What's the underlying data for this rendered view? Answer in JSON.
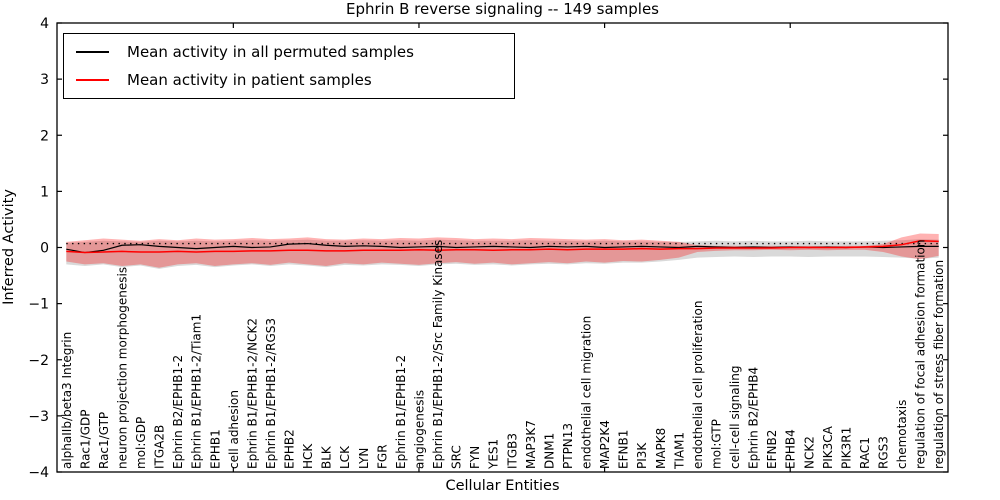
{
  "chart_data": {
    "type": "line",
    "title": "Ephrin B reverse signaling -- 149 samples",
    "xlabel": "Cellular Entities",
    "ylabel": "Inferred Activity",
    "ylim": [
      -4,
      4
    ],
    "ytick_values": [
      -4,
      -3,
      -2,
      -1,
      0,
      1,
      2,
      3,
      4
    ],
    "ytick_labels": [
      "−4",
      "−3",
      "−2",
      "−1",
      "0",
      "1",
      "2",
      "3",
      "4"
    ],
    "xtick_positions": [
      9,
      19,
      29,
      39
    ],
    "grid": false,
    "legend_position": "upper left",
    "categories": [
      "alphaIIb/beta3 Integrin",
      "Rac1/GDP",
      "Rac1/GTP",
      "neuron projection morphogenesis",
      "mol:GDP",
      "ITGA2B",
      "Ephrin B2/EPHB1-2",
      "Ephrin B1/EPHB1-2/Tiam1",
      "EPHB1",
      "cell adhesion",
      "Ephrin B1/EPHB1-2/NCK2",
      "Ephrin B1/EPHB1-2/RGS3",
      "EPHB2",
      "HCK",
      "BLK",
      "LCK",
      "LYN",
      "FGR",
      "Ephrin B1/EPHB1-2",
      "angiogenesis",
      "Ephrin B1/EPHB1-2/Src Family Kinases",
      "SRC",
      "FYN",
      "YES1",
      "ITGB3",
      "MAP3K7",
      "DNM1",
      "PTPN13",
      "endothelial cell migration",
      "MAP2K4",
      "EFNB1",
      "PI3K",
      "MAPK8",
      "TIAM1",
      "endothelial cell proliferation",
      "mol:GTP",
      "cell-cell signaling",
      "Ephrin B2/EPHB4",
      "EFNB2",
      "EPHB4",
      "NCK2",
      "PIK3CA",
      "PIK3R1",
      "RAC1",
      "RGS3",
      "chemotaxis",
      "regulation of focal adhesion formation",
      "regulation of stress fiber formation"
    ],
    "reference_line": {
      "value": 0.07,
      "style": "dotted",
      "color": "#000000"
    },
    "series": [
      {
        "name": "Mean activity in all permuted samples",
        "color": "#000000",
        "line_width": 1.2,
        "band_color": "rgba(128,128,128,0.30)",
        "values": [
          -0.03,
          -0.09,
          -0.05,
          0.04,
          0.05,
          0.02,
          0.0,
          -0.02,
          0.0,
          0.02,
          0.0,
          0.01,
          0.06,
          0.07,
          0.04,
          0.02,
          0.03,
          0.02,
          0.0,
          0.01,
          0.02,
          0.0,
          0.01,
          0.02,
          0.01,
          0.0,
          0.02,
          0.01,
          0.02,
          0.0,
          0.01,
          0.02,
          0.01,
          0.0,
          0.02,
          0.01,
          0.0,
          0.01,
          0.0,
          0.01,
          0.0,
          0.01,
          0.0,
          0.01,
          0.0,
          0.01,
          0.02,
          0.02
        ],
        "band_hi": [
          0.08,
          0.1,
          0.12,
          0.11,
          0.1,
          0.12,
          0.11,
          0.12,
          0.11,
          0.12,
          0.13,
          0.12,
          0.13,
          0.14,
          0.12,
          0.12,
          0.13,
          0.12,
          0.13,
          0.12,
          0.14,
          0.13,
          0.12,
          0.12,
          0.12,
          0.13,
          0.12,
          0.12,
          0.11,
          0.12,
          0.11,
          0.11,
          0.1,
          0.1,
          0.11,
          0.12,
          0.11,
          0.12,
          0.11,
          0.11,
          0.12,
          0.11,
          0.11,
          0.11,
          0.12,
          0.13,
          0.15,
          0.14
        ],
        "band_lo": [
          -0.3,
          -0.33,
          -0.3,
          -0.35,
          -0.32,
          -0.38,
          -0.33,
          -0.31,
          -0.35,
          -0.32,
          -0.3,
          -0.33,
          -0.3,
          -0.32,
          -0.35,
          -0.31,
          -0.32,
          -0.3,
          -0.31,
          -0.33,
          -0.3,
          -0.29,
          -0.31,
          -0.3,
          -0.32,
          -0.3,
          -0.29,
          -0.3,
          -0.28,
          -0.29,
          -0.27,
          -0.27,
          -0.25,
          -0.22,
          -0.18,
          -0.17,
          -0.16,
          -0.17,
          -0.16,
          -0.16,
          -0.17,
          -0.16,
          -0.16,
          -0.16,
          -0.17,
          -0.18,
          -0.2,
          -0.18
        ]
      },
      {
        "name": "Mean activity in patient samples",
        "color": "#ff0000",
        "line_width": 1.5,
        "band_color": "rgba(255,0,0,0.30)",
        "values": [
          -0.07,
          -0.09,
          -0.08,
          -0.07,
          -0.08,
          -0.08,
          -0.07,
          -0.08,
          -0.07,
          -0.07,
          -0.06,
          -0.06,
          -0.05,
          -0.05,
          -0.06,
          -0.06,
          -0.05,
          -0.05,
          -0.05,
          -0.04,
          -0.05,
          -0.04,
          -0.04,
          -0.05,
          -0.04,
          -0.04,
          -0.03,
          -0.04,
          -0.03,
          -0.03,
          -0.03,
          -0.02,
          -0.03,
          -0.02,
          -0.02,
          -0.01,
          -0.01,
          -0.01,
          -0.01,
          0.0,
          0.0,
          0.0,
          0.0,
          0.01,
          0.02,
          0.05,
          0.12,
          0.11
        ],
        "band_hi": [
          0.1,
          0.13,
          0.16,
          0.14,
          0.12,
          0.15,
          0.13,
          0.16,
          0.14,
          0.15,
          0.17,
          0.15,
          0.16,
          0.18,
          0.15,
          0.14,
          0.16,
          0.15,
          0.17,
          0.16,
          0.18,
          0.17,
          0.15,
          0.16,
          0.15,
          0.17,
          0.16,
          0.15,
          0.14,
          0.15,
          0.13,
          0.14,
          0.12,
          0.1,
          0.04,
          0.03,
          0.03,
          0.02,
          0.03,
          0.02,
          0.03,
          0.02,
          0.03,
          0.03,
          0.06,
          0.18,
          0.25,
          0.24
        ],
        "band_lo": [
          -0.25,
          -0.3,
          -0.28,
          -0.33,
          -0.3,
          -0.36,
          -0.3,
          -0.28,
          -0.33,
          -0.3,
          -0.28,
          -0.31,
          -0.27,
          -0.3,
          -0.33,
          -0.28,
          -0.3,
          -0.27,
          -0.29,
          -0.31,
          -0.28,
          -0.26,
          -0.29,
          -0.27,
          -0.3,
          -0.28,
          -0.26,
          -0.28,
          -0.25,
          -0.27,
          -0.24,
          -0.25,
          -0.22,
          -0.18,
          -0.08,
          -0.06,
          -0.05,
          -0.05,
          -0.04,
          -0.05,
          -0.04,
          -0.05,
          -0.04,
          -0.04,
          -0.08,
          -0.16,
          -0.21,
          -0.15
        ]
      }
    ]
  }
}
